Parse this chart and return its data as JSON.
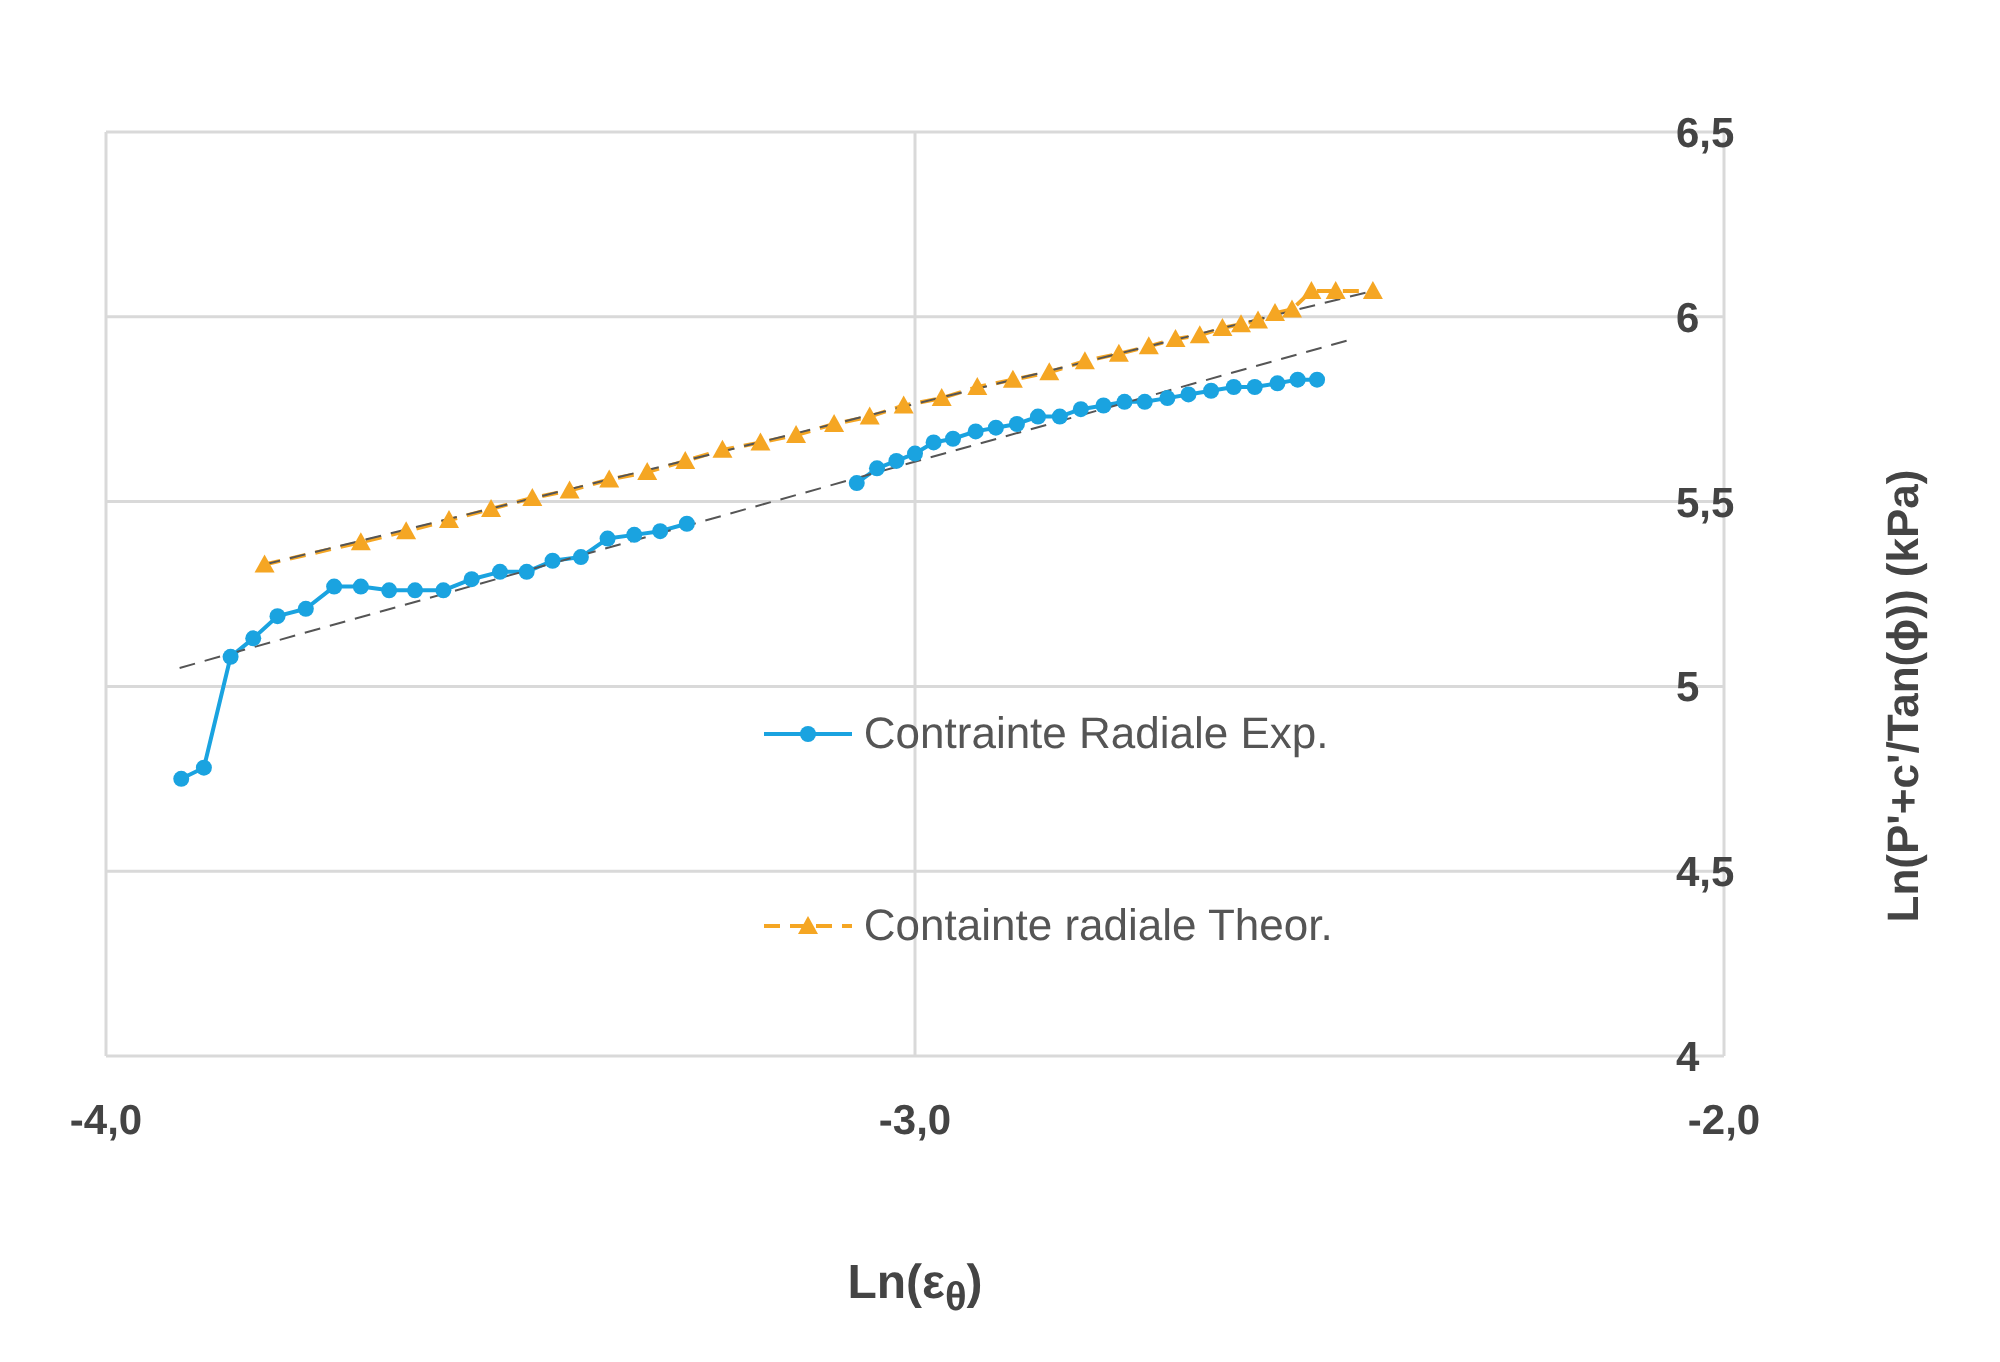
{
  "chart_data": {
    "type": "line",
    "xlabel": "Ln(ε$_{θ}$)",
    "ylabel": "Ln(P'+c'/Tan(ϕ)) (kPa)",
    "xlim": [
      -4,
      -2
    ],
    "xticks": [
      {
        "value": -4,
        "label": "-4,0"
      },
      {
        "value": -3,
        "label": "-3,0"
      },
      {
        "value": -2,
        "label": "-2,0"
      }
    ],
    "ylim": [
      4,
      6.5
    ],
    "yticks": [
      4,
      {
        "value": 4.5,
        "label": "4,5"
      },
      5,
      {
        "value": 5.5,
        "label": "5,5"
      },
      6,
      {
        "value": 6.5,
        "label": "6,5"
      }
    ],
    "grid": true,
    "legend": "center",
    "series": [
      {
        "name": "Contrainte Radiale Exp.",
        "color": "#1aa3e0",
        "marker": "circle",
        "line_style": "solid",
        "x": [
          -3.907,
          -3.879,
          -3.846,
          -3.818,
          -3.788,
          -3.753,
          -3.718,
          -3.685,
          -3.65,
          -3.618,
          -3.583,
          -3.548,
          -3.513,
          -3.48,
          -3.448,
          -3.413,
          -3.38,
          -3.347,
          -3.315,
          -3.282,
          null,
          -3.072,
          -3.047,
          -3.023,
          -3.0,
          -2.977,
          -2.953,
          -2.925,
          -2.9,
          -2.874,
          -2.848,
          -2.821,
          -2.795,
          -2.767,
          -2.741,
          -2.716,
          -2.688,
          -2.662,
          -2.634,
          -2.606,
          -2.58,
          -2.552,
          -2.527,
          -2.503
        ],
        "values": [
          4.75,
          4.78,
          5.08,
          5.13,
          5.19,
          5.21,
          5.27,
          5.27,
          5.26,
          5.26,
          5.26,
          5.29,
          5.31,
          5.31,
          5.34,
          5.35,
          5.4,
          5.41,
          5.42,
          5.44,
          null,
          5.55,
          5.59,
          5.61,
          5.63,
          5.66,
          5.67,
          5.69,
          5.7,
          5.71,
          5.73,
          5.73,
          5.75,
          5.76,
          5.77,
          5.77,
          5.78,
          5.79,
          5.8,
          5.81,
          5.81,
          5.82,
          5.83,
          5.83
        ]
      },
      {
        "name": "Containte radiale Theor.",
        "color": "#f5a623",
        "marker": "triangle",
        "line_style": "dashed",
        "x": [
          -3.804,
          -3.685,
          -3.629,
          -3.576,
          -3.524,
          -3.473,
          -3.427,
          -3.378,
          -3.331,
          -3.284,
          -3.238,
          -3.191,
          -3.147,
          -3.1,
          -3.056,
          -3.014,
          -2.967,
          -2.923,
          -2.879,
          -2.834,
          -2.79,
          -2.748,
          -2.711,
          -2.678,
          -2.648,
          -2.62,
          -2.597,
          -2.576,
          -2.555,
          -2.534,
          -2.51,
          -2.48,
          -2.434
        ],
        "values": [
          5.33,
          5.39,
          5.42,
          5.45,
          5.48,
          5.51,
          5.53,
          5.56,
          5.58,
          5.61,
          5.64,
          5.66,
          5.68,
          5.71,
          5.73,
          5.76,
          5.78,
          5.81,
          5.83,
          5.85,
          5.88,
          5.9,
          5.92,
          5.94,
          5.95,
          5.97,
          5.98,
          5.99,
          6.01,
          6.02,
          6.07,
          6.07,
          6.07
        ]
      },
      {
        "color": "#555555",
        "marker": "none",
        "line_style": "dashed",
        "x": [
          -3.909,
          -2.459
        ],
        "values": [
          5.05,
          5.94
        ]
      },
      {
        "color": "#555555",
        "marker": "none",
        "line_style": "dashed",
        "x": [
          -3.804,
          -2.434
        ],
        "values": [
          5.33,
          6.07
        ]
      }
    ]
  }
}
